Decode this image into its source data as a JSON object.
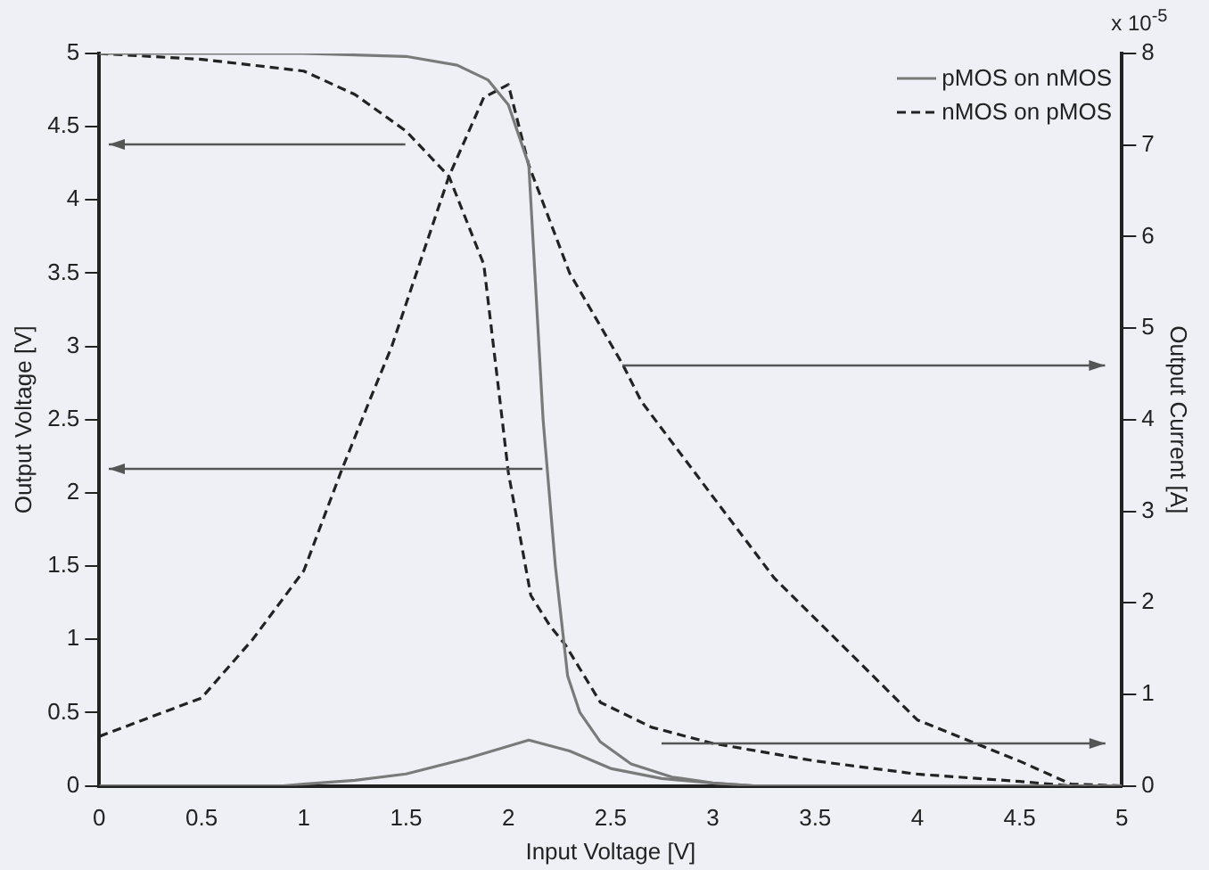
{
  "chart_data": {
    "type": "line",
    "xlabel": "Input Voltage [V]",
    "ylabel": "Output Voltage [V]",
    "y2label": "Output Current [A]",
    "annotations": [
      "x 10$^{-5}$"
    ],
    "xlim": [
      0,
      5
    ],
    "xticks": [
      0,
      0.5,
      1,
      1.5,
      2,
      2.5,
      3,
      3.5,
      4,
      4.5,
      5
    ],
    "ylim": [
      0,
      5
    ],
    "yticks": [
      0,
      0.5,
      1,
      1.5,
      2,
      2.5,
      3,
      3.5,
      4,
      4.5,
      5
    ],
    "y2lim": [
      0,
      8
    ],
    "y2ticks": [
      0,
      1,
      2,
      3,
      4,
      5,
      6,
      7,
      8
    ],
    "grid": false,
    "legend": "top right",
    "marker": "none",
    "series": [
      {
        "name": "pMOS on nMOS",
        "color": "#7a7a7a",
        "line_style": "solid",
        "x": [
          0,
          1,
          1.5,
          1.75,
          1.9,
          2.0,
          2.1,
          2.17,
          2.23,
          2.27,
          2.29,
          2.35,
          2.45,
          2.6,
          2.8,
          3,
          3.2,
          5
        ],
        "values": [
          5,
          5,
          4.98,
          4.92,
          4.82,
          4.65,
          4.24,
          2.5,
          1.5,
          1.0,
          0.75,
          0.5,
          0.3,
          0.15,
          0.06,
          0.02,
          0,
          0
        ]
      },
      {
        "name": "nMOS on pMOS",
        "color": "#222222",
        "line_style": "dashed",
        "x": [
          0,
          0.5,
          1,
          1.25,
          1.5,
          1.71,
          1.88,
          1.97,
          2.0,
          2.11,
          2.2,
          2.28,
          2.45,
          2.7,
          3,
          3.5,
          4,
          4.5,
          4.75,
          5
        ],
        "values": [
          5,
          4.96,
          4.88,
          4.72,
          4.47,
          4.16,
          3.56,
          2.5,
          2.14,
          1.3,
          1.1,
          0.96,
          0.57,
          0.4,
          0.29,
          0.17,
          0.08,
          0.03,
          0,
          0
        ]
      },
      {
        "color": "#7a7a7a",
        "line_style": "solid",
        "axis": "y2",
        "x": [
          0,
          0.9,
          1.0,
          1.25,
          1.5,
          1.8,
          2.1,
          2.3,
          2.5,
          2.75,
          3,
          3.2,
          5
        ],
        "values": [
          0,
          0,
          0.02,
          0.06,
          0.13,
          0.3,
          0.5,
          0.38,
          0.19,
          0.08,
          0.03,
          0,
          0
        ]
      },
      {
        "color": "#222222",
        "line_style": "dashed",
        "axis": "y2",
        "x": [
          0,
          0.5,
          0.75,
          1.0,
          1.18,
          1.32,
          1.43,
          1.71,
          1.88,
          2.0,
          2.1,
          2.3,
          2.56,
          2.65,
          3.02,
          3.3,
          4.0,
          4.5,
          4.75,
          5
        ],
        "values": [
          0.54,
          0.96,
          1.6,
          2.35,
          3.42,
          4.2,
          4.8,
          6.66,
          7.52,
          7.66,
          6.78,
          5.6,
          4.6,
          4.2,
          3.1,
          2.27,
          0.72,
          0.27,
          0.02,
          0
        ]
      }
    ]
  }
}
